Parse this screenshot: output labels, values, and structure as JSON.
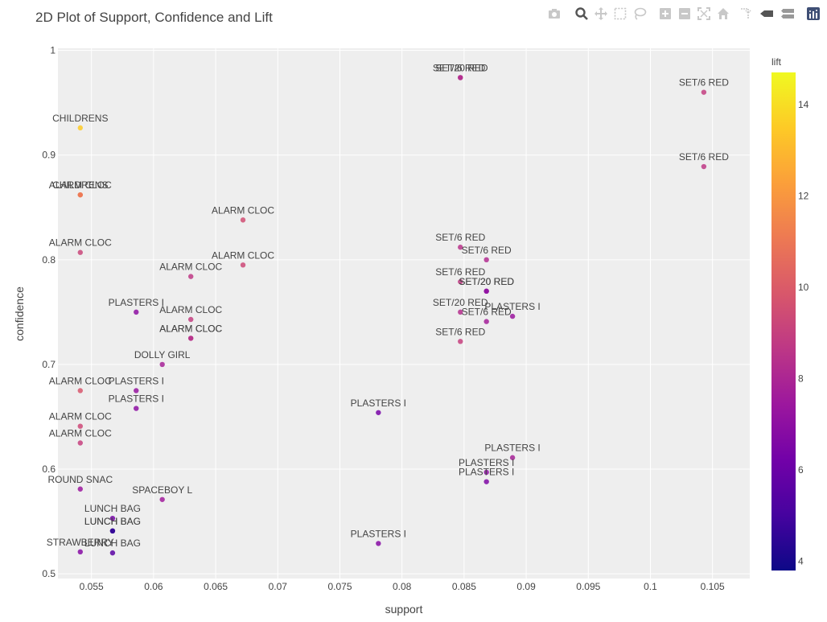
{
  "toolbar": {
    "icons": [
      "camera-icon",
      "zoom-icon",
      "pan-icon",
      "box-select-icon",
      "lasso-select-icon",
      "zoom-in-icon",
      "zoom-out-icon",
      "autoscale-icon",
      "reset-axes-icon",
      "spike-lines-icon",
      "hover-closest-icon",
      "hover-compare-icon",
      "plotly-logo-icon"
    ],
    "active": "zoom-icon"
  },
  "colors": {
    "plot_bg": "#eeeeee",
    "grid": "#ffffff",
    "text": "#444444",
    "colorscale": [
      "#0d0887",
      "#46039f",
      "#7201a8",
      "#9c179e",
      "#bd3786",
      "#d8576b",
      "#ed7953",
      "#fb9f3a",
      "#fdca26",
      "#f0f921"
    ]
  },
  "chart_data": {
    "type": "scatter",
    "title": "2D Plot of Support, Confidence and Lift",
    "xlabel": "support",
    "ylabel": "confidence",
    "xlim": [
      0.0523,
      0.108
    ],
    "ylim": [
      0.4955,
      1.002
    ],
    "x_ticks": [
      0.055,
      0.06,
      0.065,
      0.07,
      0.075,
      0.08,
      0.085,
      0.09,
      0.095,
      0.1,
      0.105
    ],
    "x_tick_labels": [
      "0.055",
      "0.06",
      "0.065",
      "0.07",
      "0.075",
      "0.08",
      "0.085",
      "0.09",
      "0.095",
      "0.1",
      "0.105"
    ],
    "y_ticks": [
      0.5,
      0.6,
      0.7,
      0.8,
      0.9,
      1.0
    ],
    "y_tick_labels": [
      "0.5",
      "0.6",
      "0.7",
      "0.8",
      "0.9",
      "1"
    ],
    "grid": true,
    "colorbar": {
      "title": "lift",
      "range": [
        3.8,
        14.7
      ],
      "ticks": [
        4,
        6,
        8,
        10,
        12,
        14
      ],
      "tick_labels": [
        "4",
        "6",
        "8",
        "10",
        "12",
        "14"
      ]
    },
    "points": [
      {
        "x": 0.0541,
        "y": 0.926,
        "lift": 13.5,
        "text": "CHILDRENS"
      },
      {
        "x": 0.0541,
        "y": 0.862,
        "lift": 11.2,
        "text": "ALARM CLOC"
      },
      {
        "x": 0.0541,
        "y": 0.862,
        "lift": 11.0,
        "text": "CHILDRENS"
      },
      {
        "x": 0.0541,
        "y": 0.807,
        "lift": 9.2,
        "text": "ALARM CLOC"
      },
      {
        "x": 0.0541,
        "y": 0.675,
        "lift": 9.8,
        "text": "ALARM CLOC"
      },
      {
        "x": 0.0541,
        "y": 0.641,
        "lift": 9.3,
        "text": "ALARM CLOC"
      },
      {
        "x": 0.0541,
        "y": 0.625,
        "lift": 9.0,
        "text": "ALARM CLOC"
      },
      {
        "x": 0.0541,
        "y": 0.581,
        "lift": 7.4,
        "text": "ROUND SNAC"
      },
      {
        "x": 0.0541,
        "y": 0.521,
        "lift": 6.8,
        "text": "STRAWBERRY"
      },
      {
        "x": 0.0567,
        "y": 0.553,
        "lift": 6.3,
        "text": "LUNCH BAG"
      },
      {
        "x": 0.0567,
        "y": 0.541,
        "lift": 4.5,
        "text": "LUNCH BAG"
      },
      {
        "x": 0.0567,
        "y": 0.541,
        "lift": 4.6,
        "text": "LUNCH BAG"
      },
      {
        "x": 0.0567,
        "y": 0.52,
        "lift": 5.6,
        "text": "LUNCH BAG"
      },
      {
        "x": 0.0586,
        "y": 0.75,
        "lift": 7.0,
        "text": "PLASTERS I"
      },
      {
        "x": 0.0586,
        "y": 0.675,
        "lift": 7.3,
        "text": "PLASTERS I"
      },
      {
        "x": 0.0586,
        "y": 0.658,
        "lift": 7.0,
        "text": "PLASTERS I"
      },
      {
        "x": 0.0607,
        "y": 0.7,
        "lift": 7.8,
        "text": "DOLLY GIRL"
      },
      {
        "x": 0.0607,
        "y": 0.571,
        "lift": 7.6,
        "text": "SPACEBOY L"
      },
      {
        "x": 0.063,
        "y": 0.784,
        "lift": 8.7,
        "text": "ALARM CLOC"
      },
      {
        "x": 0.063,
        "y": 0.743,
        "lift": 8.9,
        "text": "ALARM CLOC"
      },
      {
        "x": 0.063,
        "y": 0.725,
        "lift": 8.6,
        "text": "ALARM CLOC"
      },
      {
        "x": 0.063,
        "y": 0.725,
        "lift": 8.4,
        "text": "ALARM CLOC"
      },
      {
        "x": 0.0672,
        "y": 0.838,
        "lift": 9.5,
        "text": "ALARM CLOC"
      },
      {
        "x": 0.0672,
        "y": 0.795,
        "lift": 9.3,
        "text": "ALARM CLOC"
      },
      {
        "x": 0.0781,
        "y": 0.654,
        "lift": 6.4,
        "text": "PLASTERS I"
      },
      {
        "x": 0.0781,
        "y": 0.529,
        "lift": 6.8,
        "text": "PLASTERS I"
      },
      {
        "x": 0.0847,
        "y": 0.974,
        "lift": 8.1,
        "text": "SET/6 RED"
      },
      {
        "x": 0.0847,
        "y": 0.974,
        "lift": 8.3,
        "text": "SET/20 RED"
      },
      {
        "x": 0.0847,
        "y": 0.812,
        "lift": 8.5,
        "text": "SET/6 RED"
      },
      {
        "x": 0.0847,
        "y": 0.779,
        "lift": 8.8,
        "text": "SET/6 RED"
      },
      {
        "x": 0.0847,
        "y": 0.75,
        "lift": 8.3,
        "text": "SET/20 RED"
      },
      {
        "x": 0.0847,
        "y": 0.722,
        "lift": 9.0,
        "text": "SET/6 RED"
      },
      {
        "x": 0.0868,
        "y": 0.8,
        "lift": 8.2,
        "text": "SET/6 RED"
      },
      {
        "x": 0.0868,
        "y": 0.77,
        "lift": 6.9,
        "text": "SET/20 RED"
      },
      {
        "x": 0.0868,
        "y": 0.77,
        "lift": 7.1,
        "text": "SET/20 RED"
      },
      {
        "x": 0.0868,
        "y": 0.741,
        "lift": 7.7,
        "text": "SET/6 RED"
      },
      {
        "x": 0.0889,
        "y": 0.746,
        "lift": 7.4,
        "text": "PLASTERS I"
      },
      {
        "x": 0.0889,
        "y": 0.611,
        "lift": 7.8,
        "text": "PLASTERS I"
      },
      {
        "x": 0.0868,
        "y": 0.597,
        "lift": 7.0,
        "text": "PLASTERS I"
      },
      {
        "x": 0.0868,
        "y": 0.588,
        "lift": 6.6,
        "text": "PLASTERS I"
      },
      {
        "x": 0.1043,
        "y": 0.96,
        "lift": 8.9,
        "text": "SET/6 RED"
      },
      {
        "x": 0.1043,
        "y": 0.889,
        "lift": 8.7,
        "text": "SET/6 RED"
      }
    ]
  }
}
